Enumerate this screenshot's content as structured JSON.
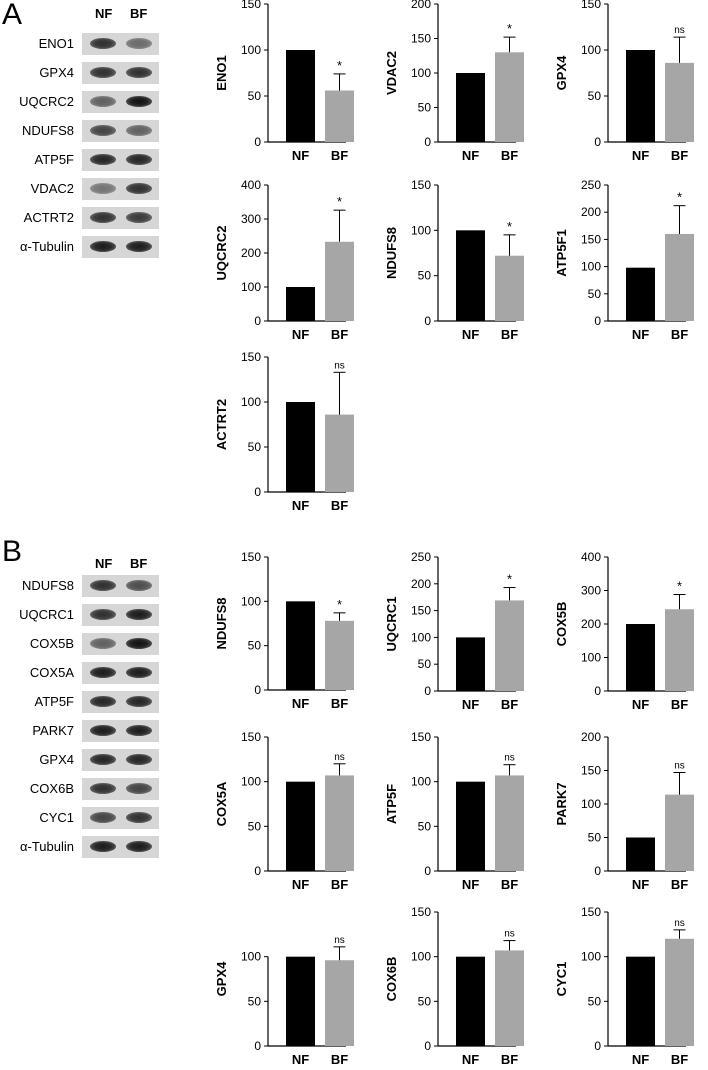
{
  "panels": [
    {
      "letter": "A",
      "lanes": [
        "NF",
        "BF"
      ],
      "blots": [
        {
          "label": "ENO1",
          "bands": [
            0.85,
            0.55
          ]
        },
        {
          "label": "GPX4",
          "bands": [
            0.85,
            0.85
          ]
        },
        {
          "label": "UQCRC2",
          "bands": [
            0.6,
            1.0
          ]
        },
        {
          "label": "NDUFS8",
          "bands": [
            0.75,
            0.6
          ]
        },
        {
          "label": "ATP5F",
          "bands": [
            0.9,
            0.9
          ]
        },
        {
          "label": "VDAC2",
          "bands": [
            0.5,
            0.85
          ]
        },
        {
          "label": "ACTRT2",
          "bands": [
            0.85,
            0.8
          ]
        },
        {
          "label": "α-Tubulin",
          "bands": [
            0.95,
            0.95
          ]
        }
      ]
    },
    {
      "letter": "B",
      "lanes": [
        "NF",
        "BF"
      ],
      "blots": [
        {
          "label": "NDUFS8",
          "bands": [
            0.85,
            0.7
          ]
        },
        {
          "label": "UQCRC1",
          "bands": [
            0.85,
            0.95
          ]
        },
        {
          "label": "COX5B",
          "bands": [
            0.6,
            1.0
          ]
        },
        {
          "label": "COX5A",
          "bands": [
            0.95,
            0.95
          ]
        },
        {
          "label": "ATP5F",
          "bands": [
            0.9,
            0.9
          ]
        },
        {
          "label": "PARK7",
          "bands": [
            0.95,
            0.95
          ]
        },
        {
          "label": "GPX4",
          "bands": [
            0.9,
            0.9
          ]
        },
        {
          "label": "COX6B",
          "bands": [
            0.85,
            0.75
          ]
        },
        {
          "label": "CYC1",
          "bands": [
            0.75,
            0.85
          ]
        },
        {
          "label": "α-Tubulin",
          "bands": [
            0.95,
            0.95
          ]
        }
      ]
    }
  ],
  "colors": {
    "nf": "#000000",
    "bf": "#a6a6a6"
  },
  "chart_data": [
    {
      "type": "bar",
      "panel": "A",
      "ylabel": "ENO1",
      "categories": [
        "NF",
        "BF"
      ],
      "values": [
        100,
        56
      ],
      "errors": [
        0,
        18
      ],
      "ylim": [
        0,
        150
      ],
      "yticks": [
        0,
        50,
        100,
        150
      ],
      "annotation": "*"
    },
    {
      "type": "bar",
      "panel": "A",
      "ylabel": "VDAC2",
      "categories": [
        "NF",
        "BF"
      ],
      "values": [
        100,
        130
      ],
      "errors": [
        0,
        22
      ],
      "ylim": [
        0,
        200
      ],
      "yticks": [
        0,
        50,
        100,
        150,
        200
      ],
      "annotation": "*"
    },
    {
      "type": "bar",
      "panel": "A",
      "ylabel": "GPX4",
      "categories": [
        "NF",
        "BF"
      ],
      "values": [
        100,
        86
      ],
      "errors": [
        0,
        28
      ],
      "ylim": [
        0,
        150
      ],
      "yticks": [
        0,
        50,
        100,
        150
      ],
      "annotation": "ns"
    },
    {
      "type": "bar",
      "panel": "A",
      "ylabel": "UQCRC2",
      "categories": [
        "NF",
        "BF"
      ],
      "values": [
        100,
        233
      ],
      "errors": [
        0,
        93
      ],
      "ylim": [
        0,
        400
      ],
      "yticks": [
        0,
        100,
        200,
        300,
        400
      ],
      "annotation": "*"
    },
    {
      "type": "bar",
      "panel": "A",
      "ylabel": "NDUFS8",
      "categories": [
        "NF",
        "BF"
      ],
      "values": [
        100,
        72
      ],
      "errors": [
        0,
        23
      ],
      "ylim": [
        0,
        150
      ],
      "yticks": [
        0,
        50,
        100,
        150
      ],
      "annotation": "*"
    },
    {
      "type": "bar",
      "panel": "A",
      "ylabel": "ATP5F1",
      "categories": [
        "NF",
        "BF"
      ],
      "values": [
        98,
        160
      ],
      "errors": [
        0,
        52
      ],
      "ylim": [
        0,
        250
      ],
      "yticks": [
        0,
        50,
        100,
        150,
        200,
        250
      ],
      "annotation": "*"
    },
    {
      "type": "bar",
      "panel": "A",
      "ylabel": "ACTRT2",
      "categories": [
        "NF",
        "BF"
      ],
      "values": [
        100,
        86
      ],
      "errors": [
        0,
        47
      ],
      "ylim": [
        0,
        150
      ],
      "yticks": [
        0,
        50,
        100,
        150
      ],
      "annotation": "ns"
    },
    {
      "type": "bar",
      "panel": "B",
      "ylabel": "NDUFS8",
      "categories": [
        "NF",
        "BF"
      ],
      "values": [
        100,
        78
      ],
      "errors": [
        0,
        9
      ],
      "ylim": [
        0,
        150
      ],
      "yticks": [
        0,
        50,
        100,
        150
      ],
      "annotation": "*"
    },
    {
      "type": "bar",
      "panel": "B",
      "ylabel": "UQCRC1",
      "categories": [
        "NF",
        "BF"
      ],
      "values": [
        100,
        169
      ],
      "errors": [
        0,
        24
      ],
      "ylim": [
        0,
        250
      ],
      "yticks": [
        0,
        50,
        100,
        150,
        200,
        250
      ],
      "annotation": "*"
    },
    {
      "type": "bar",
      "panel": "B",
      "ylabel": "COX5B",
      "categories": [
        "NF",
        "BF"
      ],
      "values": [
        200,
        244
      ],
      "errors": [
        0,
        44
      ],
      "ylim": [
        0,
        400
      ],
      "yticks": [
        0,
        100,
        200,
        300,
        400
      ],
      "annotation": "*"
    },
    {
      "type": "bar",
      "panel": "B",
      "ylabel": "COX5A",
      "categories": [
        "NF",
        "BF"
      ],
      "values": [
        100,
        107
      ],
      "errors": [
        0,
        13
      ],
      "ylim": [
        0,
        150
      ],
      "yticks": [
        0,
        50,
        100,
        150
      ],
      "annotation": "ns"
    },
    {
      "type": "bar",
      "panel": "B",
      "ylabel": "ATP5F",
      "categories": [
        "NF",
        "BF"
      ],
      "values": [
        100,
        107
      ],
      "errors": [
        0,
        12
      ],
      "ylim": [
        0,
        150
      ],
      "yticks": [
        0,
        50,
        100,
        150
      ],
      "annotation": "ns"
    },
    {
      "type": "bar",
      "panel": "B",
      "ylabel": "PARK7",
      "categories": [
        "NF",
        "BF"
      ],
      "values": [
        50,
        114
      ],
      "errors": [
        0,
        33
      ],
      "ylim": [
        0,
        200
      ],
      "yticks": [
        0,
        50,
        100,
        150,
        200
      ],
      "annotation": "ns"
    },
    {
      "type": "bar",
      "panel": "B",
      "ylabel": "GPX4",
      "categories": [
        "NF",
        "BF"
      ],
      "values": [
        100,
        96
      ],
      "errors": [
        0,
        15
      ],
      "ylim": [
        0,
        150
      ],
      "yticks": [
        0,
        50,
        100
      ],
      "annotation": "ns"
    },
    {
      "type": "bar",
      "panel": "B",
      "ylabel": "COX6B",
      "categories": [
        "NF",
        "BF"
      ],
      "values": [
        100,
        107
      ],
      "errors": [
        0,
        11
      ],
      "ylim": [
        0,
        150
      ],
      "yticks": [
        0,
        50,
        100,
        150
      ],
      "annotation": "ns"
    },
    {
      "type": "bar",
      "panel": "B",
      "ylabel": "CYC1",
      "categories": [
        "NF",
        "BF"
      ],
      "values": [
        100,
        120
      ],
      "errors": [
        0,
        10
      ],
      "ylim": [
        0,
        150
      ],
      "yticks": [
        0,
        50,
        100,
        150
      ],
      "annotation": "ns"
    }
  ]
}
